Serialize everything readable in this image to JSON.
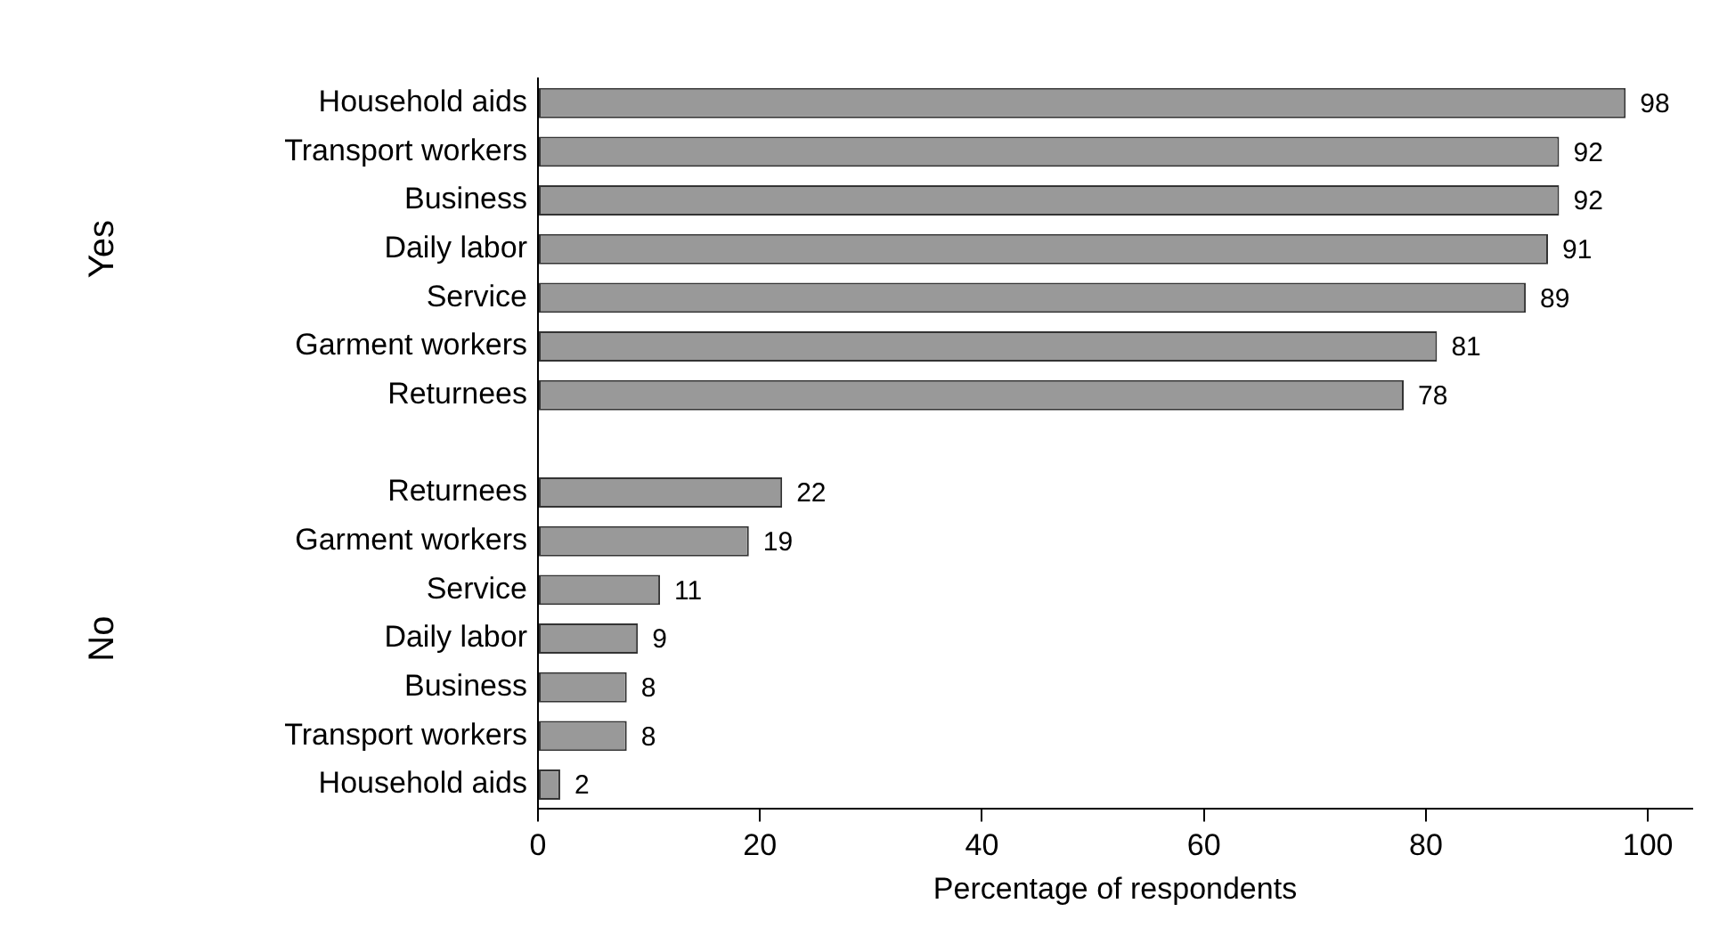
{
  "chart_data": {
    "type": "bar",
    "orientation": "horizontal",
    "xlabel": "Percentage of respondents",
    "categories": [
      "Household aids",
      "Transport workers",
      "Business",
      "Daily labor",
      "Service",
      "Garment workers",
      "Returnees",
      null,
      "Returnees",
      "Garment workers",
      "Service",
      "Daily labor",
      "Business",
      "Transport workers",
      "Household aids"
    ],
    "series": [
      {
        "color": "#999999",
        "values": [
          98,
          92,
          92,
          91,
          89,
          81,
          78,
          null,
          22,
          19,
          11,
          9,
          8,
          8,
          2
        ]
      }
    ],
    "annotations": [
      "Yes",
      "No"
    ],
    "xlim": [
      0,
      104
    ],
    "xticks": [
      0,
      20,
      40,
      60,
      80,
      100
    ],
    "grid": false,
    "legend": false,
    "data_labels": true
  }
}
